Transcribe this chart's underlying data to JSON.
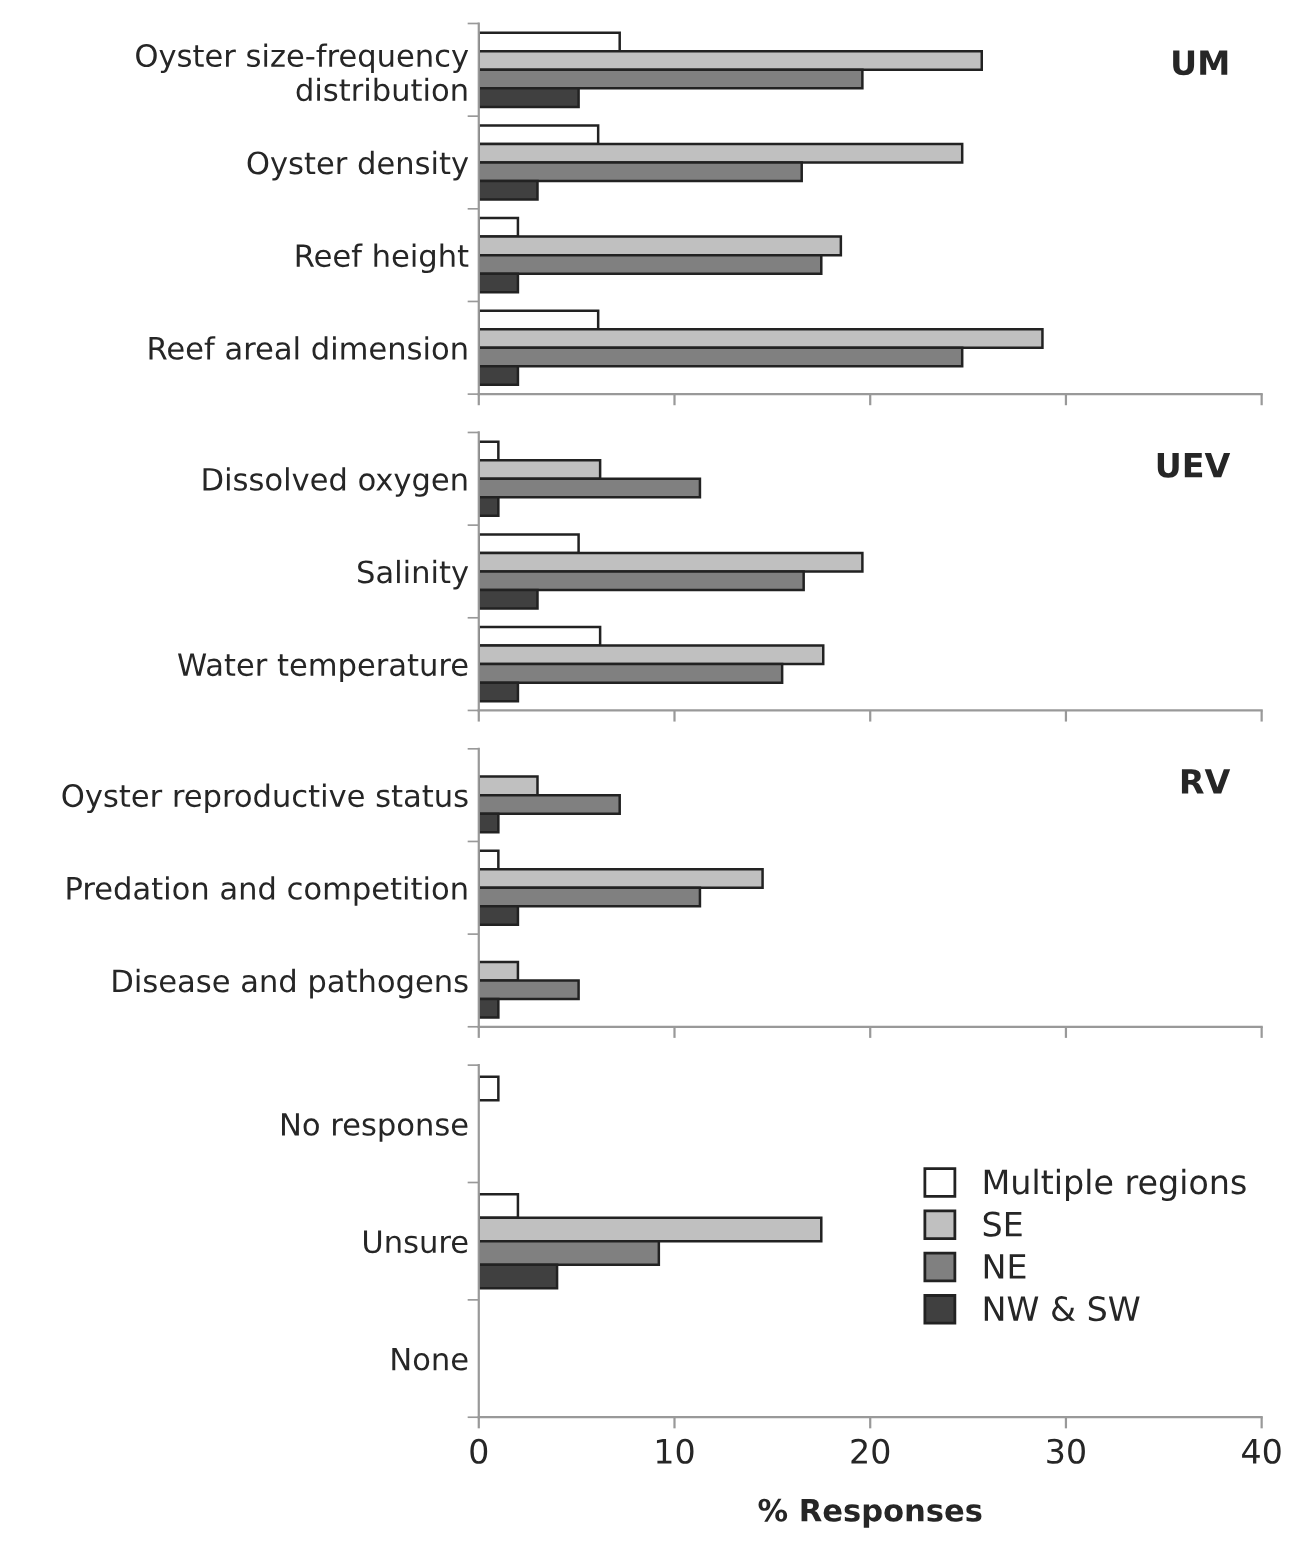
{
  "chart_data": [
    {
      "type": "bar",
      "orientation": "horizontal",
      "categories": [
        "Oyster size-frequency distribution",
        "Oyster density",
        "Reef height",
        "Reef areal dimension"
      ],
      "annotations": [
        "UM"
      ],
      "xlim": [
        0,
        40
      ],
      "xticks": [
        0,
        10,
        20,
        30,
        40
      ],
      "tick_labels": "y",
      "series": [
        {
          "color": "#ffffff",
          "values": [
            7.2,
            6.1,
            2.0,
            6.1
          ]
        },
        {
          "color": "#c0c0c0",
          "values": [
            25.7,
            24.7,
            18.5,
            28.8
          ]
        },
        {
          "color": "#808080",
          "values": [
            19.6,
            16.5,
            17.5,
            24.7
          ]
        },
        {
          "color": "#404040",
          "values": [
            5.1,
            3.0,
            2.0,
            2.0
          ]
        }
      ]
    },
    {
      "type": "bar",
      "orientation": "horizontal",
      "categories": [
        "Dissolved oxygen",
        "Salinity",
        "Water temperature"
      ],
      "annotations": [
        "UEV"
      ],
      "xlim": [
        0,
        40
      ],
      "xticks": [
        0,
        10,
        20,
        30,
        40
      ],
      "tick_labels": "y",
      "series": [
        {
          "color": "#ffffff",
          "values": [
            1.0,
            5.1,
            6.2
          ]
        },
        {
          "color": "#c0c0c0",
          "values": [
            6.2,
            19.6,
            17.6
          ]
        },
        {
          "color": "#808080",
          "values": [
            11.3,
            16.6,
            15.5
          ]
        },
        {
          "color": "#404040",
          "values": [
            1.0,
            3.0,
            2.0
          ]
        }
      ]
    },
    {
      "type": "bar",
      "orientation": "horizontal",
      "categories": [
        "Oyster reproductive status",
        "Predation and competition",
        "Disease and pathogens"
      ],
      "annotations": [
        "RV"
      ],
      "xlim": [
        0,
        40
      ],
      "xticks": [
        0,
        10,
        20,
        30,
        40
      ],
      "tick_labels": "y",
      "series": [
        {
          "color": "#ffffff",
          "values": [
            null,
            1.0,
            null
          ]
        },
        {
          "color": "#c0c0c0",
          "values": [
            3.0,
            14.5,
            2.0
          ]
        },
        {
          "color": "#808080",
          "values": [
            7.2,
            11.3,
            5.1
          ]
        },
        {
          "color": "#404040",
          "values": [
            1.0,
            2.0,
            1.0
          ]
        }
      ]
    },
    {
      "type": "bar",
      "orientation": "horizontal",
      "categories": [
        "No response",
        "Unsure",
        "None"
      ],
      "xlabel": "% Responses",
      "xlim": [
        0,
        40
      ],
      "xticks": [
        0,
        10,
        20,
        30,
        40
      ],
      "legend": "right",
      "series": [
        {
          "name": "Multiple regions",
          "color": "#ffffff",
          "values": [
            1.0,
            2.0,
            null
          ]
        },
        {
          "name": "SE",
          "color": "#c0c0c0",
          "values": [
            null,
            17.5,
            null
          ]
        },
        {
          "name": "NE",
          "color": "#808080",
          "values": [
            null,
            9.2,
            null
          ]
        },
        {
          "name": "NW & SW",
          "color": "#404040",
          "values": [
            null,
            4.0,
            null
          ]
        }
      ]
    }
  ]
}
